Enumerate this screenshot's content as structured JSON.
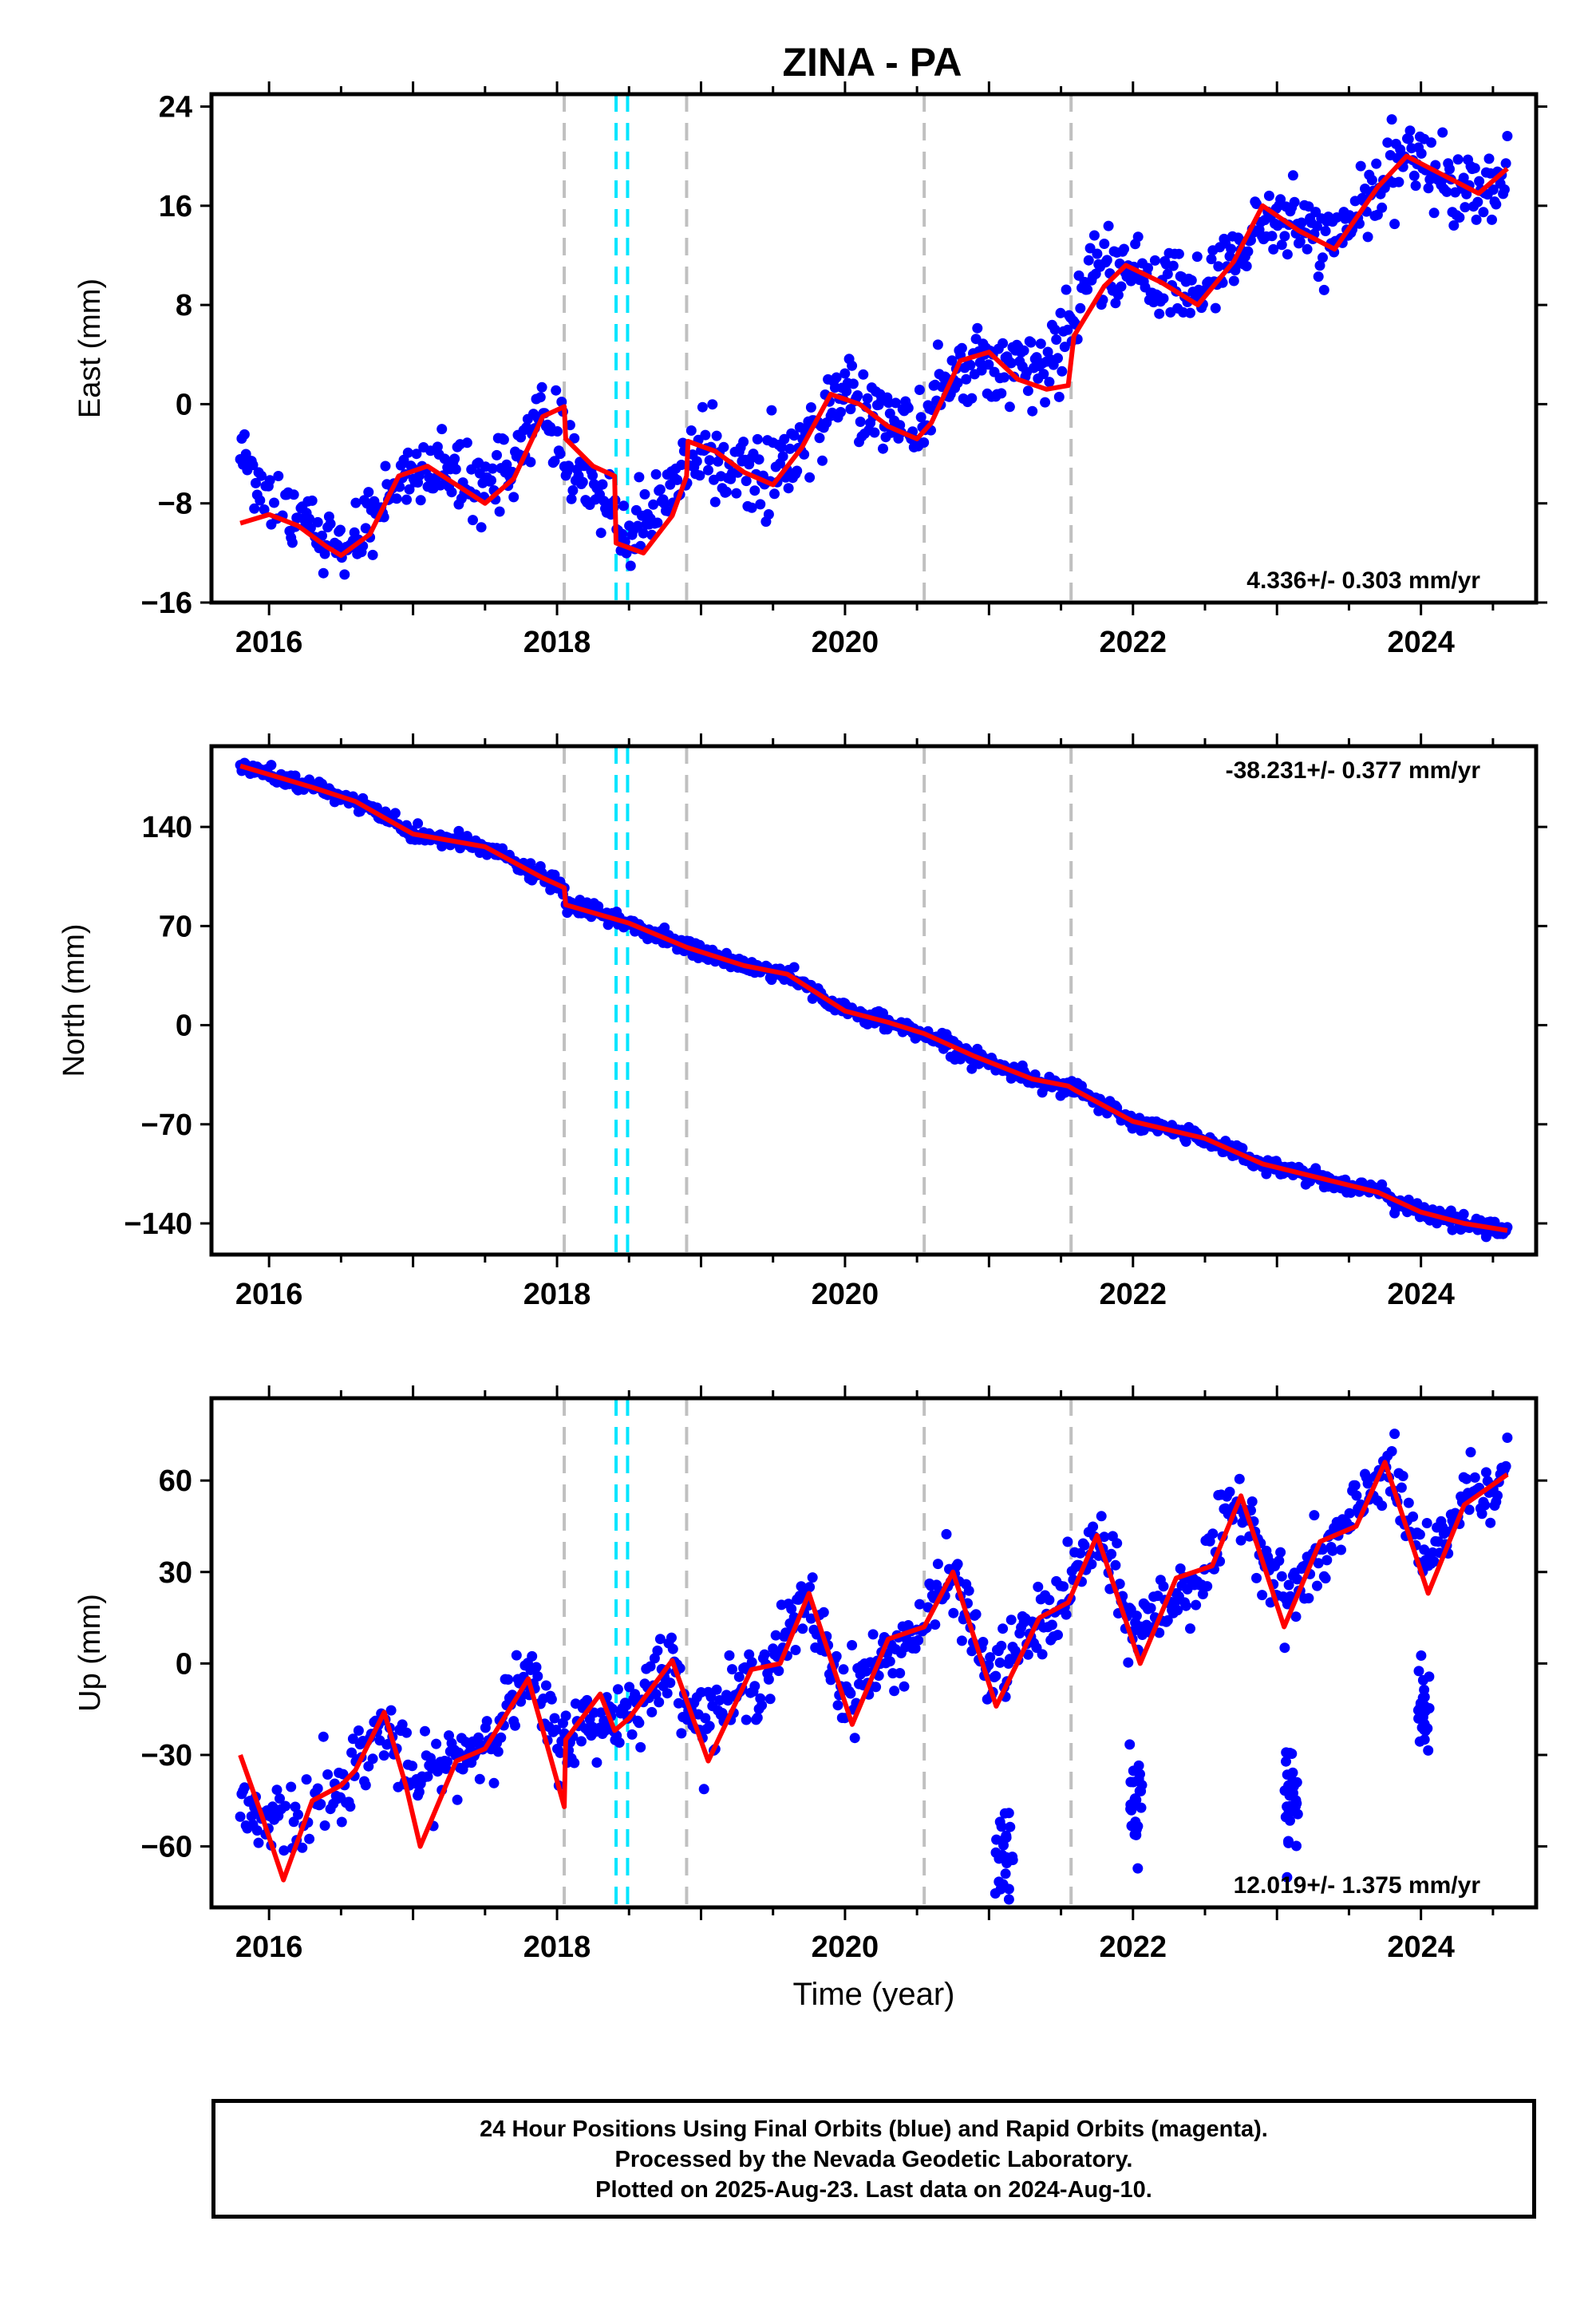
{
  "title": "ZINA - PA",
  "colors": {
    "final_orbits": "#0000ff",
    "model": "#ff0000",
    "equipment_change": "#c0c0c0",
    "earthquake": "#00e5ff"
  },
  "chart_data": [
    {
      "type": "scatter",
      "component": "East",
      "ylabel": "East (mm)",
      "xlabel": "",
      "xlim": [
        2015.6,
        2024.8
      ],
      "ylim": [
        -16,
        25
      ],
      "yticks": [
        -16,
        -8,
        0,
        8,
        16,
        24
      ],
      "ytick_labels": [
        "−16",
        "−8",
        "0",
        "8",
        "16",
        "24"
      ],
      "xticks": [
        2016,
        2018,
        2020,
        2022,
        2024
      ],
      "xtick_labels": [
        "2016",
        "2018",
        "2020",
        "2022",
        "2024"
      ],
      "rate_label": "4.336+/- 0.303 mm/yr",
      "rate_position": "bottom-right",
      "model_curve": {
        "x": [
          2015.8,
          2016.0,
          2016.2,
          2016.4,
          2016.5,
          2016.7,
          2016.9,
          2017.1,
          2017.3,
          2017.5,
          2017.7,
          2017.9,
          2018.05,
          2018.06,
          2018.25,
          2018.4,
          2018.41,
          2018.6,
          2018.8,
          2018.9,
          2018.91,
          2019.1,
          2019.3,
          2019.5,
          2019.7,
          2019.9,
          2020.1,
          2020.3,
          2020.5,
          2020.6,
          2020.8,
          2021.0,
          2021.2,
          2021.4,
          2021.55,
          2021.59,
          2021.8,
          2021.95,
          2022.2,
          2022.45,
          2022.7,
          2022.9,
          2023.15,
          2023.4,
          2023.7,
          2023.9,
          2024.15,
          2024.4,
          2024.6
        ],
        "y": [
          -9.6,
          -8.9,
          -9.8,
          -11.5,
          -12.2,
          -10.5,
          -5.8,
          -5.0,
          -6.5,
          -8.0,
          -6.0,
          -1.0,
          -0.2,
          -2.8,
          -5.0,
          -5.8,
          -11.2,
          -12.0,
          -9.0,
          -5.8,
          -3.0,
          -3.8,
          -5.5,
          -6.5,
          -3.5,
          0.8,
          0.0,
          -1.8,
          -2.8,
          -1.5,
          3.5,
          4.2,
          2.0,
          1.2,
          1.5,
          5.5,
          9.5,
          11.2,
          9.8,
          8.0,
          11.5,
          16.0,
          14.0,
          12.5,
          17.5,
          20.0,
          18.5,
          17.0,
          19.0
        ]
      },
      "data_envelope": {
        "x": [
          2015.8,
          2016.0,
          2016.5,
          2017.0,
          2017.5,
          2017.9,
          2018.5,
          2019.0,
          2019.5,
          2020.0,
          2020.5,
          2020.9,
          2021.3,
          2021.8,
          2022.5,
          2022.9,
          2023.4,
          2023.9,
          2024.4,
          2024.6
        ],
        "y": [
          -4,
          -7,
          -12,
          -5,
          -7,
          -1,
          -11,
          -4,
          -6,
          1,
          -2,
          4,
          2,
          11,
          9,
          15,
          13,
          20,
          17,
          19
        ]
      }
    },
    {
      "type": "scatter",
      "component": "North",
      "ylabel": "North (mm)",
      "xlabel": "",
      "xlim": [
        2015.6,
        2024.8
      ],
      "ylim": [
        -162,
        197
      ],
      "yticks": [
        -140,
        -70,
        0,
        70,
        140
      ],
      "ytick_labels": [
        "−140",
        "−70",
        "0",
        "70",
        "140"
      ],
      "xticks": [
        2016,
        2018,
        2020,
        2022,
        2024
      ],
      "xtick_labels": [
        "2016",
        "2018",
        "2020",
        "2022",
        "2024"
      ],
      "rate_label": "-38.231+/- 0.377 mm/yr",
      "rate_position": "top-right",
      "model_curve": {
        "x": [
          2015.8,
          2016.3,
          2016.6,
          2017.0,
          2017.5,
          2017.9,
          2018.05,
          2018.06,
          2018.5,
          2018.9,
          2019.3,
          2019.6,
          2020.0,
          2020.3,
          2020.55,
          2020.9,
          2021.3,
          2021.55,
          2021.6,
          2022.0,
          2022.5,
          2022.9,
          2023.3,
          2023.7,
          2024.0,
          2024.3,
          2024.6
        ],
        "y": [
          183,
          168,
          158,
          135,
          126,
          104,
          97,
          85,
          72,
          55,
          42,
          36,
          10,
          2,
          -6,
          -22,
          -38,
          -43,
          -46,
          -68,
          -80,
          -98,
          -108,
          -118,
          -132,
          -140,
          -145
        ]
      }
    },
    {
      "type": "scatter",
      "component": "Up",
      "ylabel": "Up (mm)",
      "xlabel": "Time (year)",
      "xlim": [
        2015.6,
        2024.8
      ],
      "ylim": [
        -80,
        87
      ],
      "yticks": [
        -60,
        -30,
        0,
        30,
        60
      ],
      "ytick_labels": [
        "−60",
        "−30",
        "0",
        "30",
        "60"
      ],
      "xticks": [
        2016,
        2018,
        2020,
        2022,
        2024
      ],
      "xtick_labels": [
        "2016",
        "2018",
        "2020",
        "2022",
        "2024"
      ],
      "rate_label": "12.019+/- 1.375 mm/yr",
      "rate_position": "bottom-right",
      "model_curve": {
        "x": [
          2015.8,
          2015.95,
          2016.1,
          2016.3,
          2016.5,
          2016.6,
          2016.8,
          2016.95,
          2017.05,
          2017.3,
          2017.5,
          2017.8,
          2017.95,
          2018.05,
          2018.06,
          2018.3,
          2018.4,
          2018.5,
          2018.8,
          2019.05,
          2019.35,
          2019.55,
          2019.75,
          2020.05,
          2020.3,
          2020.55,
          2020.75,
          2021.05,
          2021.35,
          2021.55,
          2021.75,
          2022.05,
          2022.3,
          2022.55,
          2022.75,
          2023.05,
          2023.3,
          2023.55,
          2023.75,
          2024.05,
          2024.3,
          2024.6
        ],
        "y": [
          -30,
          -50,
          -71,
          -45,
          -40,
          -35,
          -16,
          -40,
          -60,
          -32,
          -28,
          -5,
          -30,
          -47,
          -25,
          -10,
          -22,
          -18,
          1,
          -32,
          -2,
          0,
          23,
          -20,
          8,
          12,
          30,
          -14,
          15,
          20,
          42,
          0,
          28,
          32,
          55,
          12,
          40,
          45,
          66,
          23,
          52,
          62
        ]
      },
      "data_envelope": {
        "x": [
          2015.8,
          2016.1,
          2016.5,
          2016.8,
          2017.0,
          2017.5,
          2017.8,
          2018.0,
          2018.5,
          2018.8,
          2019.0,
          2019.4,
          2019.75,
          2020.0,
          2020.5,
          2020.75,
          2021.0,
          2021.5,
          2021.75,
          2022.0,
          2022.5,
          2022.75,
          2023.05,
          2023.5,
          2023.75,
          2024.05,
          2024.3,
          2024.6
        ],
        "y": [
          -45,
          -55,
          -40,
          -20,
          -40,
          -25,
          -5,
          -25,
          -15,
          0,
          -20,
          -5,
          20,
          -10,
          10,
          30,
          -5,
          20,
          42,
          10,
          30,
          55,
          20,
          45,
          66,
          30,
          55,
          62
        ]
      },
      "outlier_clusters": [
        {
          "x": 2021.1,
          "y": -65
        },
        {
          "x": 2022.02,
          "y": -45
        },
        {
          "x": 2023.1,
          "y": -45
        },
        {
          "x": 2024.02,
          "y": -15
        }
      ]
    }
  ],
  "equipment_changes": [
    2018.05,
    2018.9,
    2020.55,
    2021.57
  ],
  "earthquakes": [
    2018.41,
    2018.49
  ],
  "footer": {
    "line1": "24 Hour Positions Using Final Orbits (blue) and Rapid Orbits (magenta).",
    "line2": "Processed by the Nevada Geodetic Laboratory.",
    "line3": "Plotted on 2025-Aug-23. Last data on 2024-Aug-10."
  }
}
